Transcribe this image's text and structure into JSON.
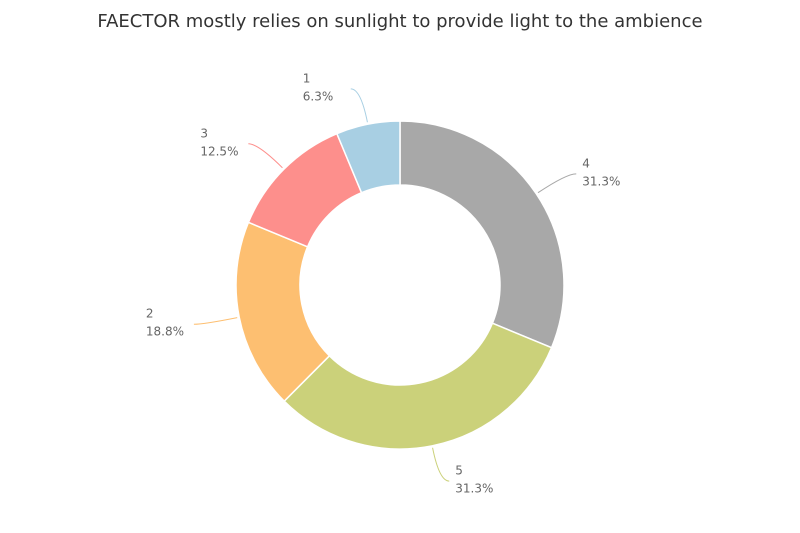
{
  "chart_data": {
    "type": "donut",
    "title": "FAECTOR mostly relies on sunlight to provide light to the ambience",
    "categories": [
      "4",
      "5",
      "2",
      "3",
      "1"
    ],
    "values": [
      31.3,
      31.3,
      18.8,
      12.5,
      6.3
    ],
    "value_labels": [
      "31.3%",
      "31.3%",
      "18.8%",
      "12.5%",
      "6.3%"
    ],
    "colors": [
      "#a8a8a8",
      "#cbd17a",
      "#fdbf71",
      "#fd8f8c",
      "#a8cfe3"
    ]
  }
}
